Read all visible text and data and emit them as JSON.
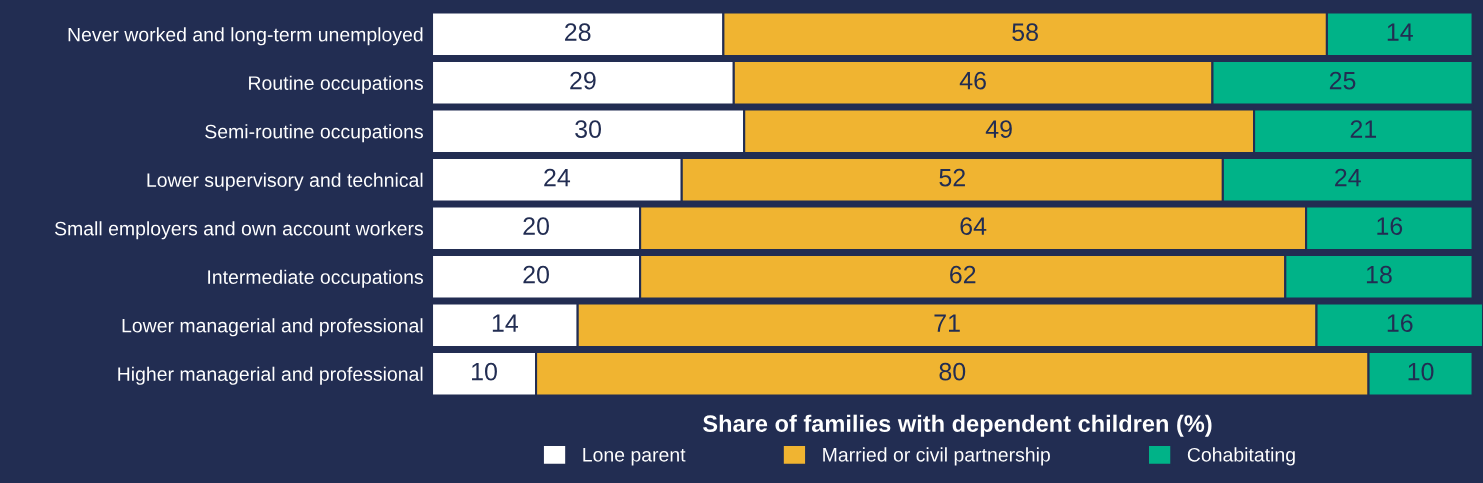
{
  "chart_data": {
    "type": "bar",
    "orientation": "horizontal",
    "stacked": true,
    "xlabel": "Share of families with dependent children (%)",
    "categories": [
      "Never worked and long-term unemployed",
      "Routine occupations",
      "Semi-routine occupations",
      "Lower supervisory and technical",
      "Small employers and own account workers",
      "Intermediate occupations",
      "Lower managerial and professional",
      "Higher managerial and professional"
    ],
    "series": [
      {
        "name": "Lone parent",
        "color": "#ffffff",
        "values": [
          28,
          29,
          30,
          24,
          20,
          20,
          14,
          10
        ]
      },
      {
        "name": "Married or civil partnership",
        "color": "#f0b431",
        "values": [
          58,
          46,
          49,
          52,
          64,
          62,
          71,
          80
        ]
      },
      {
        "name": "Cohabitating",
        "color": "#00b388",
        "values": [
          14,
          25,
          21,
          24,
          16,
          18,
          16,
          10
        ]
      }
    ],
    "xlim": [
      0,
      101
    ],
    "tick_labels": "y",
    "data_labels": true,
    "legend": "bottom",
    "grid": false
  }
}
